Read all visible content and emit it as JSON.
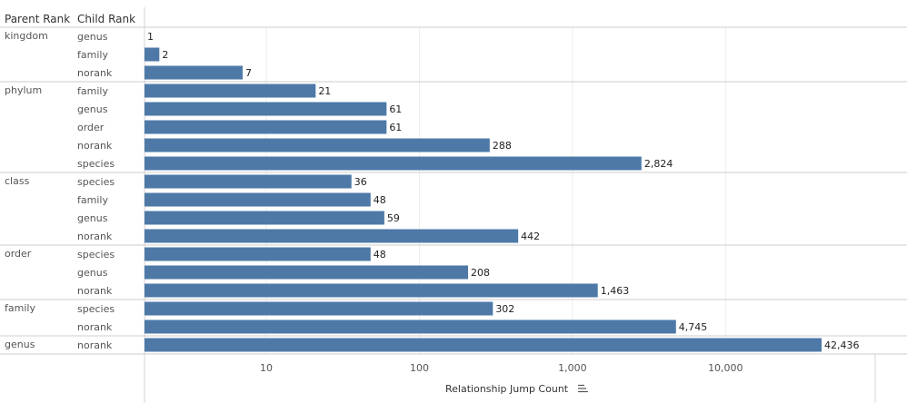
{
  "chart_data": {
    "type": "bar",
    "orientation": "horizontal",
    "headers": {
      "parent": "Parent Rank",
      "child": "Child Rank"
    },
    "xlabel": "Relationship Jump Count",
    "xscale": "log",
    "xlim": [
      1.6,
      95000
    ],
    "ticks": [
      {
        "value": 10,
        "label": "10"
      },
      {
        "value": 100,
        "label": "100"
      },
      {
        "value": 1000,
        "label": "1,000"
      },
      {
        "value": 10000,
        "label": "10,000"
      }
    ],
    "bar_color": "#4e79a7",
    "groups": [
      {
        "parent": "kingdom",
        "rows": [
          {
            "child": "genus",
            "value": 1,
            "label": "1"
          },
          {
            "child": "family",
            "value": 2,
            "label": "2"
          },
          {
            "child": "norank",
            "value": 7,
            "label": "7"
          }
        ]
      },
      {
        "parent": "phylum",
        "rows": [
          {
            "child": "family",
            "value": 21,
            "label": "21"
          },
          {
            "child": "genus",
            "value": 61,
            "label": "61"
          },
          {
            "child": "order",
            "value": 61,
            "label": "61"
          },
          {
            "child": "norank",
            "value": 288,
            "label": "288"
          },
          {
            "child": "species",
            "value": 2824,
            "label": "2,824"
          }
        ]
      },
      {
        "parent": "class",
        "rows": [
          {
            "child": "species",
            "value": 36,
            "label": "36"
          },
          {
            "child": "family",
            "value": 48,
            "label": "48"
          },
          {
            "child": "genus",
            "value": 59,
            "label": "59"
          },
          {
            "child": "norank",
            "value": 442,
            "label": "442"
          }
        ]
      },
      {
        "parent": "order",
        "rows": [
          {
            "child": "species",
            "value": 48,
            "label": "48"
          },
          {
            "child": "genus",
            "value": 208,
            "label": "208"
          },
          {
            "child": "norank",
            "value": 1463,
            "label": "1,463"
          }
        ]
      },
      {
        "parent": "family",
        "rows": [
          {
            "child": "species",
            "value": 302,
            "label": "302"
          },
          {
            "child": "norank",
            "value": 4745,
            "label": "4,745"
          }
        ]
      },
      {
        "parent": "genus",
        "rows": [
          {
            "child": "norank",
            "value": 42436,
            "label": "42,436"
          }
        ]
      }
    ]
  }
}
